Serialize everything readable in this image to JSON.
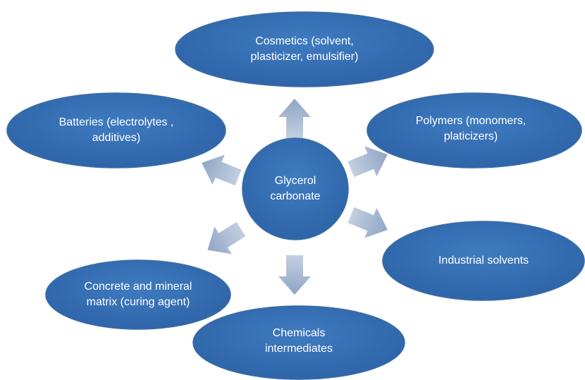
{
  "center": {
    "lines": [
      "Glycerol",
      "carbonate"
    ]
  },
  "nodes": [
    {
      "lines": [
        "Cosmetics (solvent,",
        "plasticizer, emulsifier)"
      ]
    },
    {
      "lines": [
        "Batteries (electrolytes ,",
        "additives)"
      ]
    },
    {
      "lines": [
        "Polymers (monomers,",
        "platicizers)"
      ]
    },
    {
      "lines": [
        "Industrial solvents"
      ]
    },
    {
      "lines": [
        "Concrete and mineral",
        "matrix (curing agent)"
      ]
    },
    {
      "lines": [
        "Chemicals",
        "intermediates"
      ]
    }
  ]
}
